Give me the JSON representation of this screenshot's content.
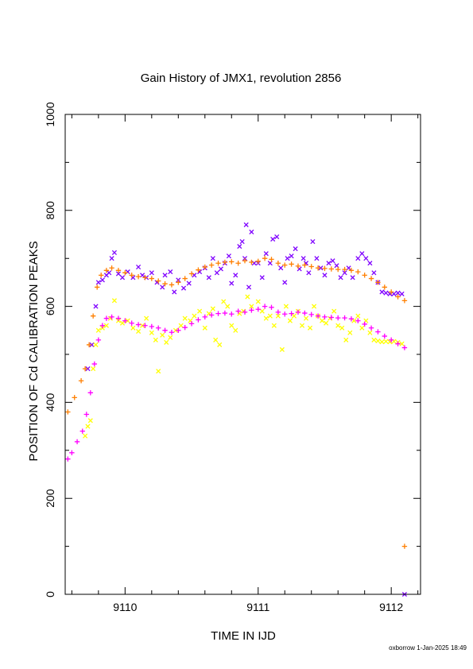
{
  "chart_data": {
    "type": "scatter",
    "title": "Gain History of JMX1, revolution 2856",
    "xlabel": "TIME IN IJD",
    "ylabel": "POSITION OF Cd CALIBRATION PEAKS",
    "xlim": [
      9109.55,
      9112.22
    ],
    "ylim": [
      0,
      1000
    ],
    "x_ticks": [
      "9110",
      "9111",
      "9112"
    ],
    "y_ticks": [
      "0",
      "200",
      "400",
      "600",
      "800",
      "1000"
    ],
    "grid": false,
    "footer": "oxborrow  1-Jan-2025 18:49",
    "series": [
      {
        "marker": "x",
        "color": "#7f00ff",
        "points": [
          [
            9109.72,
            470
          ],
          [
            9109.75,
            520
          ],
          [
            9109.78,
            600
          ],
          [
            9109.8,
            650
          ],
          [
            9109.83,
            655
          ],
          [
            9109.86,
            665
          ],
          [
            9109.88,
            670
          ],
          [
            9109.9,
            700
          ],
          [
            9109.92,
            712
          ],
          [
            9109.95,
            668
          ],
          [
            9109.98,
            660
          ],
          [
            9110.02,
            672
          ],
          [
            9110.06,
            660
          ],
          [
            9110.1,
            682
          ],
          [
            9110.13,
            665
          ],
          [
            9110.16,
            660
          ],
          [
            9110.2,
            670
          ],
          [
            9110.24,
            650
          ],
          [
            9110.28,
            640
          ],
          [
            9110.3,
            665
          ],
          [
            9110.34,
            672
          ],
          [
            9110.37,
            630
          ],
          [
            9110.4,
            655
          ],
          [
            9110.44,
            638
          ],
          [
            9110.48,
            648
          ],
          [
            9110.52,
            665
          ],
          [
            9110.56,
            672
          ],
          [
            9110.6,
            680
          ],
          [
            9110.63,
            660
          ],
          [
            9110.66,
            700
          ],
          [
            9110.69,
            670
          ],
          [
            9110.72,
            678
          ],
          [
            9110.75,
            690
          ],
          [
            9110.78,
            705
          ],
          [
            9110.8,
            648
          ],
          [
            9110.83,
            665
          ],
          [
            9110.86,
            725
          ],
          [
            9110.88,
            735
          ],
          [
            9110.9,
            700
          ],
          [
            9110.91,
            770
          ],
          [
            9110.93,
            640
          ],
          [
            9110.95,
            755
          ],
          [
            9110.97,
            690
          ],
          [
            9111.0,
            690
          ],
          [
            9111.03,
            660
          ],
          [
            9111.06,
            710
          ],
          [
            9111.09,
            690
          ],
          [
            9111.11,
            740
          ],
          [
            9111.14,
            745
          ],
          [
            9111.17,
            680
          ],
          [
            9111.2,
            650
          ],
          [
            9111.22,
            700
          ],
          [
            9111.25,
            705
          ],
          [
            9111.28,
            720
          ],
          [
            9111.31,
            678
          ],
          [
            9111.34,
            700
          ],
          [
            9111.36,
            690
          ],
          [
            9111.38,
            670
          ],
          [
            9111.41,
            735
          ],
          [
            9111.44,
            700
          ],
          [
            9111.47,
            680
          ],
          [
            9111.5,
            665
          ],
          [
            9111.53,
            690
          ],
          [
            9111.56,
            695
          ],
          [
            9111.59,
            685
          ],
          [
            9111.62,
            660
          ],
          [
            9111.65,
            670
          ],
          [
            9111.68,
            680
          ],
          [
            9111.71,
            660
          ],
          [
            9111.75,
            700
          ],
          [
            9111.78,
            710
          ],
          [
            9111.81,
            700
          ],
          [
            9111.84,
            690
          ],
          [
            9111.87,
            670
          ],
          [
            9111.9,
            650
          ],
          [
            9111.93,
            630
          ],
          [
            9111.96,
            628
          ],
          [
            9111.99,
            626
          ],
          [
            9112.02,
            626
          ],
          [
            9112.05,
            628
          ],
          [
            9112.08,
            626
          ],
          [
            9112.1,
            0
          ]
        ]
      },
      {
        "marker": "x",
        "color": "#ffff00",
        "points": [
          [
            9109.7,
            330
          ],
          [
            9109.72,
            350
          ],
          [
            9109.74,
            362
          ],
          [
            9109.76,
            470
          ],
          [
            9109.78,
            520
          ],
          [
            9109.8,
            550
          ],
          [
            9109.83,
            555
          ],
          [
            9109.86,
            560
          ],
          [
            9109.89,
            575
          ],
          [
            9109.92,
            612
          ],
          [
            9109.95,
            570
          ],
          [
            9109.98,
            565
          ],
          [
            9110.02,
            570
          ],
          [
            9110.06,
            555
          ],
          [
            9110.1,
            548
          ],
          [
            9110.13,
            560
          ],
          [
            9110.16,
            575
          ],
          [
            9110.2,
            545
          ],
          [
            9110.23,
            530
          ],
          [
            9110.25,
            465
          ],
          [
            9110.28,
            540
          ],
          [
            9110.31,
            525
          ],
          [
            9110.34,
            535
          ],
          [
            9110.38,
            550
          ],
          [
            9110.42,
            560
          ],
          [
            9110.45,
            575
          ],
          [
            9110.49,
            570
          ],
          [
            9110.52,
            580
          ],
          [
            9110.56,
            590
          ],
          [
            9110.6,
            555
          ],
          [
            9110.63,
            585
          ],
          [
            9110.66,
            595
          ],
          [
            9110.68,
            530
          ],
          [
            9110.71,
            520
          ],
          [
            9110.74,
            610
          ],
          [
            9110.77,
            600
          ],
          [
            9110.8,
            560
          ],
          [
            9110.83,
            550
          ],
          [
            9110.86,
            585
          ],
          [
            9110.89,
            590
          ],
          [
            9110.92,
            620
          ],
          [
            9110.95,
            600
          ],
          [
            9111.0,
            610
          ],
          [
            9111.03,
            590
          ],
          [
            9111.06,
            575
          ],
          [
            9111.09,
            580
          ],
          [
            9111.12,
            560
          ],
          [
            9111.15,
            580
          ],
          [
            9111.18,
            510
          ],
          [
            9111.21,
            600
          ],
          [
            9111.24,
            570
          ],
          [
            9111.27,
            580
          ],
          [
            9111.3,
            590
          ],
          [
            9111.33,
            560
          ],
          [
            9111.36,
            575
          ],
          [
            9111.39,
            555
          ],
          [
            9111.42,
            600
          ],
          [
            9111.45,
            580
          ],
          [
            9111.48,
            570
          ],
          [
            9111.51,
            565
          ],
          [
            9111.54,
            575
          ],
          [
            9111.57,
            590
          ],
          [
            9111.6,
            560
          ],
          [
            9111.63,
            555
          ],
          [
            9111.66,
            530
          ],
          [
            9111.69,
            545
          ],
          [
            9111.72,
            570
          ],
          [
            9111.75,
            580
          ],
          [
            9111.78,
            555
          ],
          [
            9111.81,
            570
          ],
          [
            9111.84,
            545
          ],
          [
            9111.87,
            530
          ],
          [
            9111.9,
            528
          ],
          [
            9111.93,
            526
          ],
          [
            9111.96,
            527
          ],
          [
            9111.99,
            526
          ],
          [
            9112.02,
            527
          ],
          [
            9112.05,
            525
          ],
          [
            9112.08,
            522
          ]
        ]
      }
    ],
    "fits": [
      {
        "marker": "+",
        "color": "#ff7f00",
        "points": [
          [
            9109.57,
            380
          ],
          [
            9109.62,
            410
          ],
          [
            9109.67,
            445
          ],
          [
            9109.7,
            470
          ],
          [
            9109.73,
            520
          ],
          [
            9109.76,
            580
          ],
          [
            9109.79,
            640
          ],
          [
            9109.82,
            665
          ],
          [
            9109.86,
            675
          ],
          [
            9109.9,
            680
          ],
          [
            9109.95,
            675
          ],
          [
            9110.0,
            670
          ],
          [
            9110.05,
            665
          ],
          [
            9110.1,
            662
          ],
          [
            9110.15,
            660
          ],
          [
            9110.2,
            658
          ],
          [
            9110.25,
            653
          ],
          [
            9110.3,
            647
          ],
          [
            9110.35,
            645
          ],
          [
            9110.4,
            650
          ],
          [
            9110.45,
            658
          ],
          [
            9110.5,
            668
          ],
          [
            9110.55,
            676
          ],
          [
            9110.6,
            682
          ],
          [
            9110.65,
            686
          ],
          [
            9110.7,
            690
          ],
          [
            9110.75,
            692
          ],
          [
            9110.8,
            693
          ],
          [
            9110.85,
            690
          ],
          [
            9110.9,
            695
          ],
          [
            9110.95,
            692
          ],
          [
            9111.0,
            694
          ],
          [
            9111.05,
            700
          ],
          [
            9111.1,
            698
          ],
          [
            9111.15,
            690
          ],
          [
            9111.2,
            686
          ],
          [
            9111.25,
            688
          ],
          [
            9111.3,
            684
          ],
          [
            9111.35,
            686
          ],
          [
            9111.4,
            683
          ],
          [
            9111.45,
            680
          ],
          [
            9111.5,
            679
          ],
          [
            9111.55,
            678
          ],
          [
            9111.6,
            677
          ],
          [
            9111.65,
            677
          ],
          [
            9111.7,
            675
          ],
          [
            9111.75,
            672
          ],
          [
            9111.8,
            665
          ],
          [
            9111.85,
            658
          ],
          [
            9111.9,
            650
          ],
          [
            9111.95,
            640
          ],
          [
            9112.0,
            630
          ],
          [
            9112.05,
            620
          ],
          [
            9112.1,
            612
          ],
          [
            9112.1,
            100
          ]
        ]
      },
      {
        "marker": "+",
        "color": "#ff00ff",
        "points": [
          [
            9109.57,
            282
          ],
          [
            9109.6,
            295
          ],
          [
            9109.64,
            318
          ],
          [
            9109.68,
            340
          ],
          [
            9109.71,
            375
          ],
          [
            9109.74,
            420
          ],
          [
            9109.77,
            480
          ],
          [
            9109.8,
            530
          ],
          [
            9109.83,
            560
          ],
          [
            9109.86,
            575
          ],
          [
            9109.9,
            578
          ],
          [
            9109.95,
            575
          ],
          [
            9110.0,
            570
          ],
          [
            9110.05,
            565
          ],
          [
            9110.1,
            562
          ],
          [
            9110.15,
            560
          ],
          [
            9110.2,
            558
          ],
          [
            9110.25,
            555
          ],
          [
            9110.3,
            550
          ],
          [
            9110.35,
            546
          ],
          [
            9110.4,
            550
          ],
          [
            9110.45,
            556
          ],
          [
            9110.5,
            564
          ],
          [
            9110.55,
            572
          ],
          [
            9110.6,
            578
          ],
          [
            9110.65,
            582
          ],
          [
            9110.7,
            585
          ],
          [
            9110.75,
            586
          ],
          [
            9110.8,
            584
          ],
          [
            9110.85,
            590
          ],
          [
            9110.9,
            588
          ],
          [
            9110.95,
            592
          ],
          [
            9111.0,
            594
          ],
          [
            9111.05,
            600
          ],
          [
            9111.1,
            598
          ],
          [
            9111.15,
            588
          ],
          [
            9111.2,
            584
          ],
          [
            9111.25,
            585
          ],
          [
            9111.3,
            588
          ],
          [
            9111.35,
            586
          ],
          [
            9111.4,
            583
          ],
          [
            9111.45,
            580
          ],
          [
            9111.5,
            578
          ],
          [
            9111.55,
            577
          ],
          [
            9111.6,
            576
          ],
          [
            9111.65,
            576
          ],
          [
            9111.7,
            574
          ],
          [
            9111.75,
            570
          ],
          [
            9111.8,
            563
          ],
          [
            9111.85,
            555
          ],
          [
            9111.9,
            547
          ],
          [
            9111.95,
            538
          ],
          [
            9112.0,
            530
          ],
          [
            9112.05,
            522
          ],
          [
            9112.1,
            514
          ]
        ]
      }
    ]
  }
}
